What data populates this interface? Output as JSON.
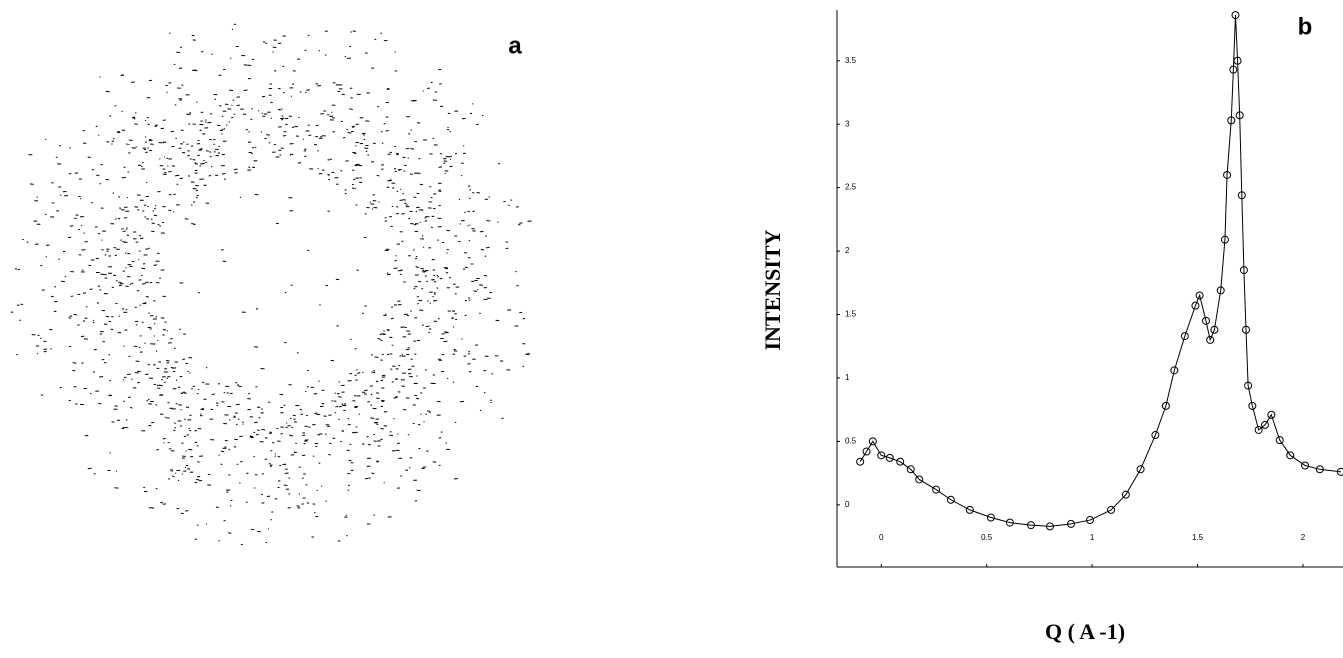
{
  "image_panel": {
    "label": "a"
  },
  "chart_data": {
    "type": "line",
    "panel_label": "b",
    "x_label": "Q ( A -1)",
    "y_label": "INTENSITY",
    "xlim": [
      -0.21,
      2.19
    ],
    "ylim": [
      -0.49,
      3.9
    ],
    "xticks": [
      0,
      0.5,
      1,
      1.5,
      2
    ],
    "yticks": [
      0,
      0.5,
      1,
      1.5,
      2,
      2.5,
      3,
      3.5
    ],
    "marker": "circle",
    "color": "#000000",
    "x": [
      -0.1,
      -0.07,
      -0.04,
      0.0,
      0.04,
      0.09,
      0.14,
      0.18,
      0.26,
      0.33,
      0.42,
      0.52,
      0.61,
      0.71,
      0.8,
      0.9,
      0.99,
      1.09,
      1.16,
      1.23,
      1.3,
      1.35,
      1.39,
      1.44,
      1.49,
      1.51,
      1.54,
      1.56,
      1.58,
      1.61,
      1.63,
      1.64,
      1.66,
      1.67,
      1.68,
      1.69,
      1.7,
      1.71,
      1.72,
      1.73,
      1.74,
      1.76,
      1.79,
      1.82,
      1.85,
      1.89,
      1.94,
      2.01,
      2.08,
      2.18
    ],
    "values": [
      0.34,
      0.42,
      0.5,
      0.39,
      0.37,
      0.34,
      0.28,
      0.2,
      0.12,
      0.04,
      -0.04,
      -0.1,
      -0.14,
      -0.16,
      -0.17,
      -0.15,
      -0.12,
      -0.04,
      0.08,
      0.28,
      0.55,
      0.78,
      1.06,
      1.33,
      1.57,
      1.65,
      1.45,
      1.3,
      1.38,
      1.69,
      2.09,
      2.6,
      3.03,
      3.43,
      3.86,
      3.5,
      3.07,
      2.44,
      1.85,
      1.38,
      0.94,
      0.78,
      0.59,
      0.63,
      0.71,
      0.51,
      0.39,
      0.31,
      0.28,
      0.26
    ]
  }
}
